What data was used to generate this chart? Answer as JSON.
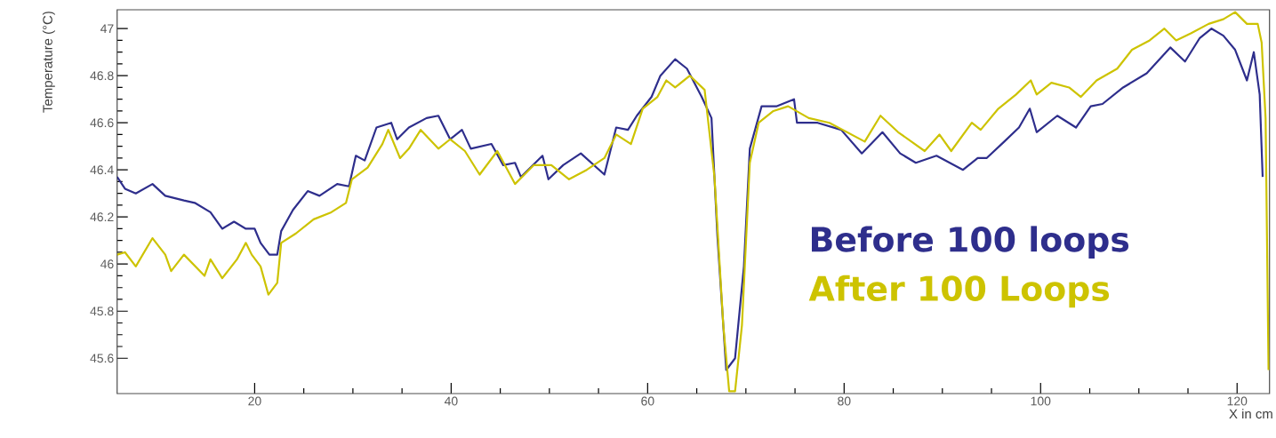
{
  "chart_data": {
    "type": "line",
    "xlabel": "X in cm",
    "ylabel": "Temperature (°C)",
    "xlim": [
      6,
      123.3
    ],
    "ylim": [
      45.45,
      47.08
    ],
    "xticks": [
      20,
      40,
      60,
      80,
      100,
      120
    ],
    "yticks": [
      45.6,
      45.8,
      46,
      46.2,
      46.4,
      46.6,
      46.8,
      47
    ],
    "legend": "bottom right",
    "series": [
      {
        "name": "Before 100 loops",
        "color": "#2e2e8c",
        "x": [
          6.0,
          6.8,
          7.9,
          9.6,
          10.9,
          12.8,
          13.9,
          15.5,
          16.7,
          17.9,
          19.1,
          20.0,
          20.6,
          21.5,
          22.3,
          22.7,
          23.9,
          25.4,
          26.6,
          28.4,
          29.6,
          30.3,
          31.2,
          32.4,
          33.9,
          34.5,
          35.7,
          37.5,
          38.7,
          39.9,
          41.1,
          42.0,
          44.1,
          45.3,
          46.5,
          47.1,
          49.3,
          49.9,
          51.4,
          53.2,
          55.6,
          56.8,
          58.0,
          58.9,
          60.4,
          61.3,
          62.8,
          64.0,
          65.5,
          66.5,
          67.1,
          68.0,
          68.9,
          69.8,
          70.4,
          71.6,
          73.1,
          74.9,
          75.2,
          77.3,
          79.7,
          81.8,
          83.9,
          85.7,
          87.3,
          89.4,
          92.1,
          93.6,
          94.5,
          96.3,
          97.8,
          98.9,
          99.6,
          101.7,
          103.6,
          105.1,
          106.3,
          108.4,
          110.8,
          113.2,
          114.7,
          116.2,
          117.4,
          118.6,
          119.8,
          121.0,
          121.7,
          122.3,
          122.6
        ],
        "values": [
          46.37,
          46.32,
          46.3,
          46.34,
          46.29,
          46.27,
          46.26,
          46.22,
          46.15,
          46.18,
          46.15,
          46.15,
          46.09,
          46.04,
          46.04,
          46.14,
          46.23,
          46.31,
          46.29,
          46.34,
          46.33,
          46.46,
          46.44,
          46.58,
          46.6,
          46.53,
          46.58,
          46.62,
          46.63,
          46.53,
          46.57,
          46.49,
          46.51,
          46.42,
          46.43,
          46.37,
          46.46,
          46.36,
          46.42,
          46.47,
          46.38,
          46.58,
          46.57,
          46.63,
          46.71,
          46.8,
          46.87,
          46.83,
          46.71,
          46.62,
          46.12,
          45.55,
          45.6,
          45.99,
          46.49,
          46.67,
          46.67,
          46.7,
          46.6,
          46.6,
          46.57,
          46.47,
          46.56,
          46.47,
          46.43,
          46.46,
          46.4,
          46.45,
          46.45,
          46.52,
          46.58,
          46.66,
          46.56,
          46.63,
          46.58,
          46.67,
          46.68,
          46.75,
          46.81,
          46.92,
          46.86,
          46.96,
          47.0,
          46.97,
          46.91,
          46.78,
          46.9,
          46.72,
          46.37
        ]
      },
      {
        "name": "After 100 Loops",
        "color": "#cdc300",
        "x": [
          6.0,
          6.8,
          7.9,
          9.6,
          10.9,
          11.5,
          12.8,
          14.9,
          15.5,
          16.7,
          18.2,
          19.1,
          19.7,
          20.6,
          21.4,
          22.3,
          22.7,
          24.2,
          26.0,
          27.8,
          29.3,
          29.9,
          31.5,
          33.0,
          33.6,
          34.8,
          35.7,
          36.9,
          38.7,
          39.9,
          41.4,
          42.9,
          44.7,
          46.5,
          48.4,
          50.2,
          52.0,
          53.8,
          55.6,
          56.8,
          58.3,
          59.5,
          61.0,
          61.9,
          62.8,
          64.3,
          65.8,
          66.8,
          67.7,
          68.3,
          68.9,
          69.6,
          70.4,
          71.3,
          72.8,
          74.3,
          76.4,
          78.5,
          80.3,
          82.1,
          83.7,
          85.5,
          88.2,
          89.7,
          90.9,
          93.0,
          93.9,
          95.7,
          97.5,
          99.0,
          99.6,
          101.1,
          102.9,
          104.1,
          105.7,
          107.8,
          109.3,
          111.1,
          112.6,
          113.8,
          115.3,
          117.1,
          118.6,
          119.8,
          121.0,
          122.1,
          122.5,
          122.9,
          123.2
        ],
        "values": [
          46.04,
          46.05,
          45.99,
          46.11,
          46.04,
          45.97,
          46.04,
          45.95,
          46.02,
          45.94,
          46.02,
          46.09,
          46.04,
          45.99,
          45.87,
          45.92,
          46.09,
          46.13,
          46.19,
          46.22,
          46.26,
          46.36,
          46.41,
          46.51,
          46.57,
          46.45,
          46.49,
          46.57,
          46.49,
          46.53,
          46.48,
          46.38,
          46.48,
          46.34,
          46.42,
          46.42,
          46.36,
          46.4,
          46.45,
          46.55,
          46.51,
          46.66,
          46.71,
          46.78,
          46.75,
          46.8,
          46.74,
          46.37,
          45.74,
          45.46,
          45.46,
          45.74,
          46.43,
          46.6,
          46.65,
          46.67,
          46.62,
          46.6,
          46.56,
          46.52,
          46.63,
          46.56,
          46.48,
          46.55,
          46.48,
          46.6,
          46.57,
          46.66,
          46.72,
          46.78,
          46.72,
          46.77,
          46.75,
          46.71,
          46.78,
          46.83,
          46.91,
          46.95,
          47.0,
          46.95,
          46.98,
          47.02,
          47.04,
          47.07,
          47.02,
          47.02,
          46.94,
          46.62,
          45.55
        ]
      }
    ]
  }
}
